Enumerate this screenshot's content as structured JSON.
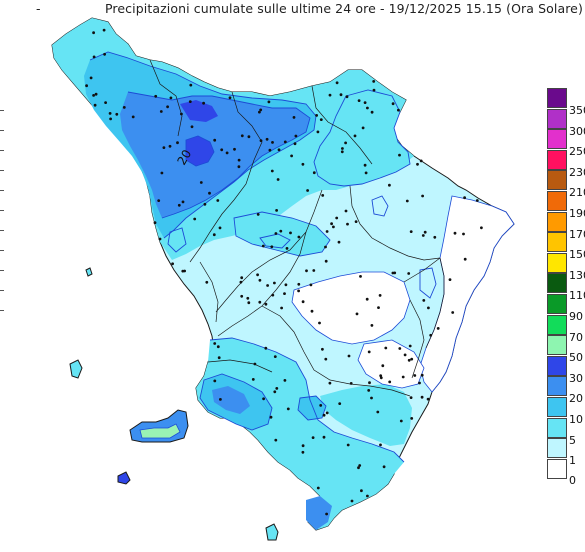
{
  "title": {
    "dash": "-",
    "text": "Precipitazioni cumulate sulle ultime 24 ore - 19/12/2025 15.15 (Ora Solare)"
  },
  "map": {
    "contour_label": "20",
    "colors": {
      "sea": "#ffffff",
      "land_1_5": "#bff6ff",
      "land_5_10": "#66e4f4",
      "land_10_20": "#3ec5f0",
      "land_20_30": "#3c8ff0",
      "land_30_50": "#2f46e8",
      "land_50_70": "#9af3b4",
      "border": "#1a1a1a",
      "contour": "#1d4bd6",
      "station": "#111111"
    }
  },
  "legend": {
    "bottom_label": "0",
    "classes": [
      {
        "label": "350",
        "color": "#6a0a8c"
      },
      {
        "label": "300",
        "color": "#b030c8"
      },
      {
        "label": "250",
        "color": "#e230cc"
      },
      {
        "label": "230",
        "color": "#ff1060"
      },
      {
        "label": "210",
        "color": "#b85a10"
      },
      {
        "label": "190",
        "color": "#f06a08"
      },
      {
        "label": "170",
        "color": "#ff9a00"
      },
      {
        "label": "150",
        "color": "#ffc400"
      },
      {
        "label": "130",
        "color": "#ffe600"
      },
      {
        "label": "110",
        "color": "#0a5a10"
      },
      {
        "label": "90",
        "color": "#0a9a28"
      },
      {
        "label": "70",
        "color": "#12dc5a"
      },
      {
        "label": "50",
        "color": "#8ef5b0"
      },
      {
        "label": "30",
        "color": "#2f46e8"
      },
      {
        "label": "20",
        "color": "#3c8ff0"
      },
      {
        "label": "10",
        "color": "#3ec5f0"
      },
      {
        "label": "5",
        "color": "#66e4f4"
      },
      {
        "label": "1",
        "color": "#bff6ff"
      },
      {
        "label": "",
        "color": "#ffffff"
      }
    ]
  }
}
